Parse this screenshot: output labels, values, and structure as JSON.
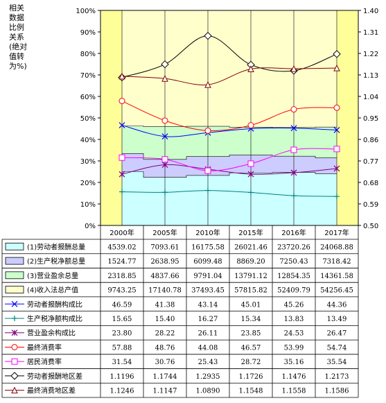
{
  "chart_data": {
    "type": "table",
    "ylabel": "相关数据比例关系(绝对值转为%)",
    "categories": [
      "2000年",
      "2005年",
      "2010年",
      "2015年",
      "2016年",
      "2017年"
    ],
    "y_left": {
      "ylim": [
        0,
        100
      ],
      "ticks": [
        "0%",
        "10%",
        "20%",
        "30%",
        "40%",
        "50%",
        "60%",
        "70%",
        "80%",
        "90%",
        "100%"
      ]
    },
    "y_right": {
      "ylim": [
        0.5,
        1.4
      ],
      "ticks": [
        "0.50",
        "0.59",
        "0.68",
        "0.77",
        "0.86",
        "0.95",
        "1.04",
        "1.13",
        "1.22",
        "1.31",
        "1.40"
      ]
    },
    "grid": false,
    "area_series": [
      {
        "name": "(1)劳动者报酬总量",
        "display": [
          "4539.02",
          "7093.61",
          "16175.58",
          "26021.46",
          "23720.26",
          "24068.88"
        ],
        "values": [
          4539.02,
          7093.61,
          16175.58,
          26021.46,
          23720.26,
          24068.88
        ],
        "color": "#ccffff"
      },
      {
        "name": "(2)生产税净额总量",
        "display": [
          "1524.77",
          "2638.95",
          "6099.48",
          "8869.20",
          "7250.43",
          "7318.42"
        ],
        "values": [
          1524.77,
          2638.95,
          6099.48,
          8869.2,
          7250.43,
          7318.42
        ],
        "color": "#ccccff"
      },
      {
        "name": "(3)营业盈余总量",
        "display": [
          "2318.85",
          "4837.66",
          "9791.04",
          "13791.12",
          "12854.35",
          "14361.58"
        ],
        "values": [
          2318.85,
          4837.66,
          9791.04,
          13791.12,
          12854.35,
          14361.58
        ],
        "color": "#ccffcc"
      },
      {
        "name": "(4)收入法总产值",
        "display": [
          "9743.25",
          "17140.78",
          "37493.45",
          "57815.82",
          "52409.79",
          "54256.45"
        ],
        "values": [
          9743.25,
          17140.78,
          37493.45,
          57815.82,
          52409.79,
          54256.45
        ],
        "color": "#ffffcc"
      }
    ],
    "line_series": [
      {
        "name": "劳动者报酬构成比",
        "display": [
          "46.59",
          "41.38",
          "43.14",
          "45.01",
          "45.26",
          "44.36"
        ],
        "values": [
          46.59,
          41.38,
          43.14,
          45.01,
          45.26,
          44.36
        ],
        "axis": "left",
        "color": "#0000ff",
        "marker": "x"
      },
      {
        "name": "生产税净额构成比",
        "display": [
          "15.65",
          "15.40",
          "16.27",
          "15.34",
          "13.83",
          "13.49"
        ],
        "values": [
          15.65,
          15.4,
          16.27,
          15.34,
          13.83,
          13.49
        ],
        "axis": "left",
        "color": "#008080",
        "marker": "plus"
      },
      {
        "name": "营业盈余构成比",
        "display": [
          "23.80",
          "28.22",
          "26.11",
          "23.85",
          "24.53",
          "26.47"
        ],
        "values": [
          23.8,
          28.22,
          26.11,
          23.85,
          24.53,
          26.47
        ],
        "axis": "left",
        "color": "#800080",
        "marker": "star"
      },
      {
        "name": "最终消费率",
        "display": [
          "57.88",
          "48.76",
          "44.08",
          "46.57",
          "53.99",
          "54.74"
        ],
        "values": [
          57.88,
          48.76,
          44.08,
          46.57,
          53.99,
          54.74
        ],
        "axis": "left",
        "color": "#ff0000",
        "marker": "circle"
      },
      {
        "name": "居民消费率",
        "display": [
          "31.54",
          "30.76",
          "25.43",
          "28.72",
          "35.16",
          "35.54"
        ],
        "values": [
          31.54,
          30.76,
          25.43,
          28.72,
          35.16,
          35.54
        ],
        "axis": "left",
        "color": "#ff00ff",
        "marker": "square"
      },
      {
        "name": "劳动者报酬地区差",
        "display": [
          "1.1196",
          "1.1744",
          "1.2935",
          "1.1726",
          "1.1476",
          "1.2173"
        ],
        "values": [
          1.1196,
          1.1744,
          1.2935,
          1.1726,
          1.1476,
          1.2173
        ],
        "axis": "right",
        "color": "#000000",
        "marker": "diamond"
      },
      {
        "name": "最终消费地区差",
        "display": [
          "1.1246",
          "1.1147",
          "1.0890",
          "1.1548",
          "1.1558",
          "1.1586"
        ],
        "values": [
          1.1246,
          1.1147,
          1.089,
          1.1548,
          1.1558,
          1.1586
        ],
        "axis": "right",
        "color": "#800000",
        "marker": "triangle"
      }
    ]
  }
}
